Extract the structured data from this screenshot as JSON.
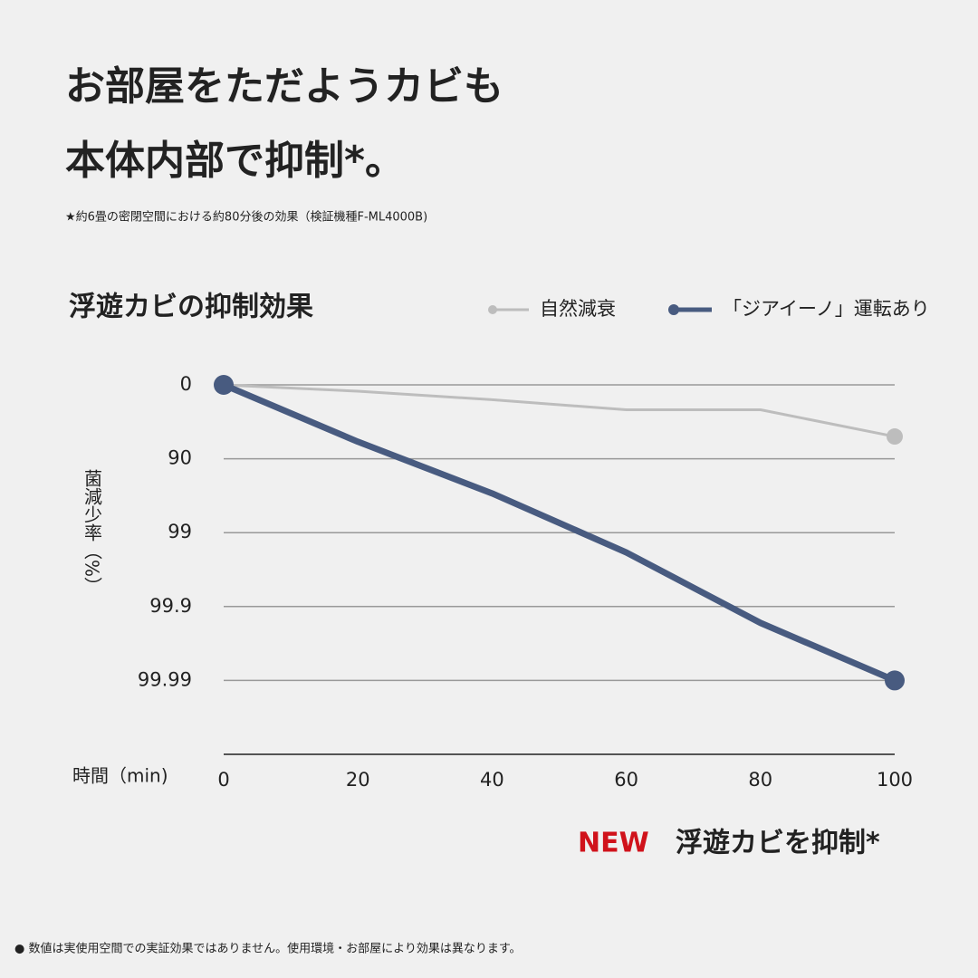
{
  "chart_data": {
    "type": "line",
    "title": [
      "お部屋をただようカビも",
      "本体内部で抑制*。"
    ],
    "subtitle": "★約6畳の密閉空間における約80分後の効果（検証機種F-ML4000B)",
    "chart_title": "浮遊カビの抑制効果",
    "ylabel": "菌減少率（%）",
    "xlabel": "時間（min)",
    "annotation": {
      "new": "NEW",
      "text": "浮遊カビを抑制*"
    },
    "footnote": "● 数値は実使用空間での実証効果ではありません。使用環境・お部屋により効果は異なります。",
    "x": [
      0,
      20,
      40,
      60,
      80,
      100
    ],
    "xlim": [
      0,
      100
    ],
    "xticks": [
      0,
      20,
      40,
      60,
      80,
      100
    ],
    "ylim": [
      0,
      99.999
    ],
    "yticks": [
      0,
      90,
      99,
      99.9,
      99.99
    ],
    "yscale": "log-reduction",
    "grid": true,
    "legend": "top-right",
    "series": [
      {
        "name": "自然減衰",
        "color": "#bdbdbd",
        "values": [
          0,
          18,
          37,
          54,
          54,
          80
        ]
      },
      {
        "name": "「ジアイーノ」運転あり",
        "color": "#485b80",
        "values": [
          0,
          83,
          96.6,
          99.46,
          99.94,
          99.99
        ]
      }
    ]
  }
}
